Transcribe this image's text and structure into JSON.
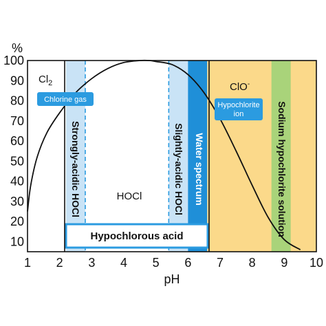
{
  "chart_data": {
    "type": "area",
    "xlabel": "pH",
    "ylabel": "%",
    "xlim": [
      1,
      10
    ],
    "ylim": [
      5,
      100
    ],
    "xticks": [
      1,
      2,
      3,
      4,
      5,
      6,
      7,
      8,
      9,
      10
    ],
    "yticks": [
      10,
      20,
      30,
      40,
      50,
      60,
      70,
      80,
      90,
      100
    ],
    "curve": {
      "x": [
        1.0,
        1.1,
        1.3,
        1.6,
        2.0,
        2.5,
        3.0,
        3.5,
        4.0,
        4.5,
        4.8,
        5.0,
        5.5,
        6.0,
        6.5,
        7.0,
        7.5,
        8.0,
        8.5,
        9.0,
        9.5
      ],
      "y": [
        25,
        38,
        52,
        64,
        74,
        84,
        91,
        96,
        99,
        100,
        100,
        99.5,
        98,
        93,
        84,
        71,
        55,
        38,
        22,
        11,
        6
      ]
    },
    "bands": [
      {
        "name": "strongly_acidic",
        "x0": 2.2,
        "x1": 2.8,
        "color": "#c9e3f6",
        "border": "#2b9be0",
        "right_dashed": true
      },
      {
        "name": "slightly_acidic",
        "x0": 5.4,
        "x1": 6.0,
        "color": "#c9e3f6",
        "border": "#2b9be0",
        "left_dashed": true
      },
      {
        "name": "water",
        "x0": 6.0,
        "x1": 6.6,
        "color": "#1f8fd8"
      },
      {
        "name": "hypochlorite_region",
        "x0": 6.6,
        "x1": 10.0,
        "color": "#fbd98a"
      },
      {
        "name": "sodium",
        "x0": 8.6,
        "x1": 9.2,
        "color": "#a9d37a"
      }
    ],
    "labels": {
      "cl2": "Cl",
      "cl2_sub": "2",
      "hocl": "HOCl",
      "clo": "ClO",
      "clo_sup": "-",
      "chlorine_gas": "Chlorine gas",
      "hypochlorite_line1": "Hypochlorite",
      "hypochlorite_line2": "ion",
      "strongly_acidic": "Strongly-acidic HOCl",
      "slightly_acidic": "Slightly-acidic HOCl",
      "water_spectrum": "Water spectrum",
      "sodium_solution": "Sodium hypochlorite solution",
      "hypochlorous_acid": "Hypochlorous acid"
    },
    "colors": {
      "badge": "#2b9be0",
      "frame": "#111111",
      "curve": "#111111"
    }
  }
}
